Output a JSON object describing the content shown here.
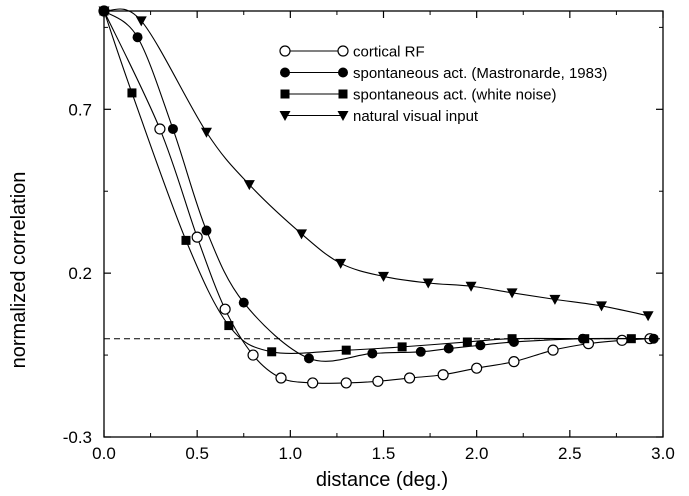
{
  "chart_data": {
    "type": "line",
    "xlabel": "distance (deg.)",
    "ylabel": "normalized correlation",
    "xlim": [
      0.0,
      3.0
    ],
    "ylim": [
      -0.3,
      1.0
    ],
    "xticks": [
      0.0,
      0.5,
      1.0,
      1.5,
      2.0,
      2.5,
      3.0
    ],
    "xtick_labels": [
      "0.0",
      "0.5",
      "1.0",
      "1.5",
      "2.0",
      "2.5",
      "3.0"
    ],
    "yticks": [
      -0.3,
      0.2,
      0.7
    ],
    "ytick_labels": [
      "-0.3",
      "0.2",
      "0.7"
    ],
    "grid": false,
    "legend_position": "top-right",
    "reference_line": {
      "y": 0.0,
      "style": "dashed"
    },
    "series": [
      {
        "name": "cortical RF",
        "marker": "open-circle",
        "points": [
          [
            0.0,
            1.0
          ],
          [
            0.3,
            0.64
          ],
          [
            0.5,
            0.31
          ],
          [
            0.65,
            0.09
          ],
          [
            0.8,
            -0.05
          ],
          [
            0.95,
            -0.12
          ],
          [
            1.12,
            -0.135
          ],
          [
            1.3,
            -0.135
          ],
          [
            1.47,
            -0.13
          ],
          [
            1.64,
            -0.12
          ],
          [
            1.82,
            -0.11
          ],
          [
            2.0,
            -0.09
          ],
          [
            2.2,
            -0.07
          ],
          [
            2.41,
            -0.035
          ],
          [
            2.6,
            -0.015
          ],
          [
            2.78,
            -0.005
          ],
          [
            2.93,
            0.0
          ]
        ]
      },
      {
        "name": "spontaneous act. (Mastronarde, 1983)",
        "marker": "filled-circle",
        "points": [
          [
            0.0,
            1.0
          ],
          [
            0.18,
            0.92
          ],
          [
            0.37,
            0.64
          ],
          [
            0.55,
            0.33
          ],
          [
            0.75,
            0.11
          ],
          [
            1.1,
            -0.06
          ],
          [
            1.44,
            -0.045
          ],
          [
            1.7,
            -0.04
          ],
          [
            1.85,
            -0.03
          ],
          [
            2.02,
            -0.02
          ],
          [
            2.2,
            -0.01
          ],
          [
            2.57,
            0.0
          ],
          [
            2.95,
            0.0
          ]
        ]
      },
      {
        "name": "spontaneous act. (white noise)",
        "marker": "filled-square",
        "points": [
          [
            0.0,
            1.0
          ],
          [
            0.15,
            0.75
          ],
          [
            0.44,
            0.3
          ],
          [
            0.67,
            0.04
          ],
          [
            0.9,
            -0.04
          ],
          [
            1.3,
            -0.035
          ],
          [
            1.6,
            -0.025
          ],
          [
            1.95,
            -0.01
          ],
          [
            2.19,
            0.0
          ],
          [
            2.58,
            0.0
          ],
          [
            2.83,
            0.0
          ]
        ]
      },
      {
        "name": "natural visual input",
        "marker": "filled-triangle-down",
        "points": [
          [
            0.0,
            1.0
          ],
          [
            0.2,
            0.97
          ],
          [
            0.55,
            0.63
          ],
          [
            0.78,
            0.47
          ],
          [
            1.06,
            0.32
          ],
          [
            1.27,
            0.23
          ],
          [
            1.5,
            0.19
          ],
          [
            1.74,
            0.17
          ],
          [
            1.97,
            0.16
          ],
          [
            2.19,
            0.14
          ],
          [
            2.42,
            0.12
          ],
          [
            2.67,
            0.1
          ],
          [
            2.92,
            0.07
          ]
        ]
      }
    ]
  }
}
